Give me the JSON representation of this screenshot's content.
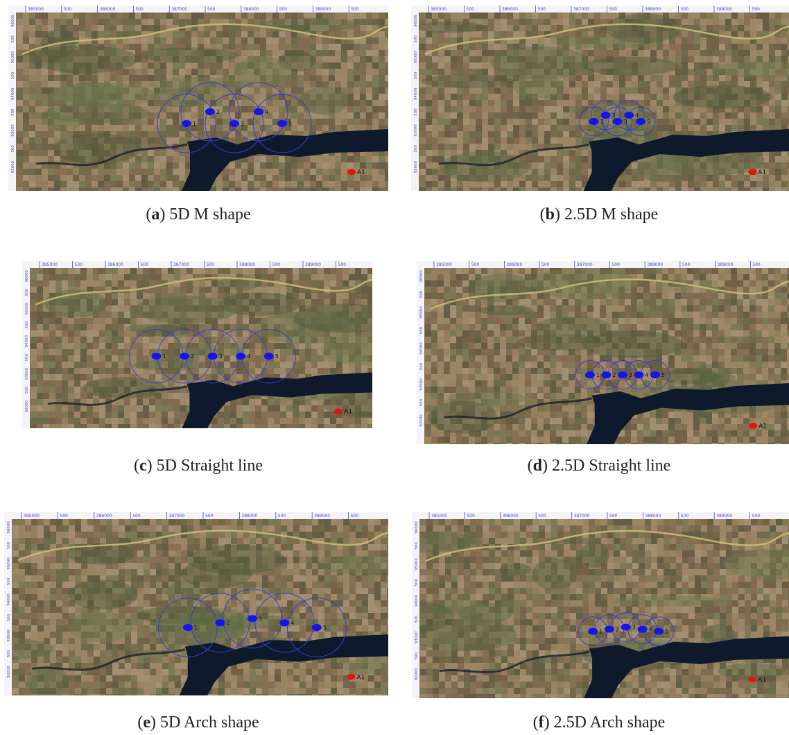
{
  "panels": [
    {
      "letter": "a",
      "caption": "5D M shape",
      "pattern": "M",
      "spacing": "5D",
      "sensors": [
        "1",
        "2",
        "3",
        "4",
        "5"
      ],
      "marker": "A1"
    },
    {
      "letter": "b",
      "caption": "2.5D M shape",
      "pattern": "M",
      "spacing": "2.5D",
      "sensors": [
        "1",
        "2",
        "3",
        "4",
        "5"
      ],
      "marker": "A1"
    },
    {
      "letter": "c",
      "caption": "5D Straight line",
      "pattern": "line",
      "spacing": "5D",
      "sensors": [
        "1",
        "2",
        "3",
        "4",
        "5"
      ],
      "marker": "A1"
    },
    {
      "letter": "d",
      "caption": "2.5D Straight line",
      "pattern": "line",
      "spacing": "2.5D",
      "sensors": [
        "1",
        "2",
        "3",
        "4",
        "5"
      ],
      "marker": "A1"
    },
    {
      "letter": "e",
      "caption": "5D Arch shape",
      "pattern": "arch",
      "spacing": "5D",
      "sensors": [
        "1",
        "2",
        "3",
        "4",
        "5"
      ],
      "marker": "A1"
    },
    {
      "letter": "f",
      "caption": "2.5D Arch shape",
      "pattern": "arch",
      "spacing": "2.5D",
      "sensors": [
        "1",
        "2",
        "3",
        "4",
        "5"
      ],
      "marker": "A1"
    }
  ],
  "ruler_labels": [
    "385000",
    "500",
    "386000",
    "500",
    "387000",
    "500",
    "388000",
    "500",
    "389000",
    "500"
  ],
  "side_labels": [
    "96000",
    "500",
    "95000",
    "500",
    "94000",
    "500",
    "93000",
    "500",
    "92000"
  ],
  "colors": {
    "sensor": "#1414ee",
    "coverage": "#3a3ad8",
    "marker": "#e81010",
    "water": "#0e1a2c",
    "terrain": "#8b7355",
    "ruler": "#4848c8"
  }
}
